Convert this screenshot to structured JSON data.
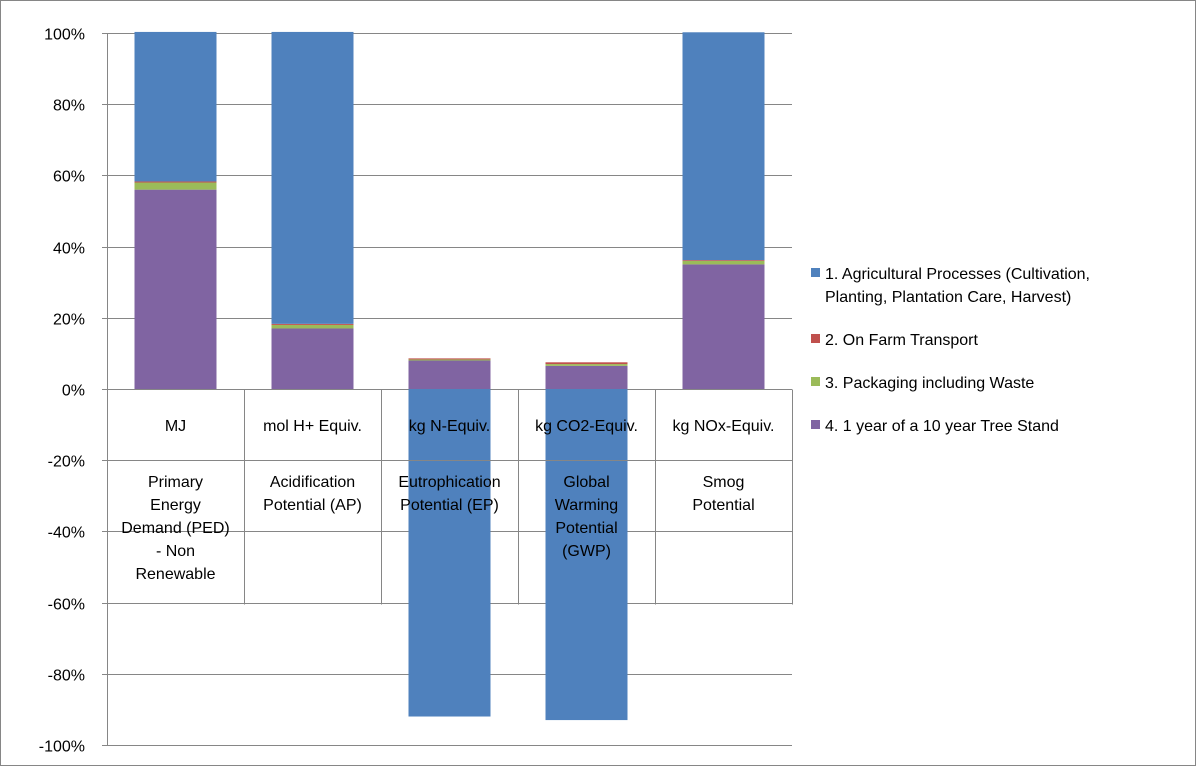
{
  "chart_data": {
    "type": "bar",
    "stacked": true,
    "categories": [
      {
        "unit": "MJ",
        "name_lines": [
          "Primary",
          "Energy",
          "Demand (PED)",
          "- Non",
          "Renewable"
        ]
      },
      {
        "unit": "mol H+ Equiv.",
        "name_lines": [
          "Acidification",
          "Potential (AP)"
        ]
      },
      {
        "unit": "kg N-Equiv.",
        "name_lines": [
          "Eutrophication",
          "Potential (EP)"
        ]
      },
      {
        "unit": "kg CO2-Equiv.",
        "name_lines": [
          "Global",
          "Warming",
          "Potential",
          "(GWP)"
        ]
      },
      {
        "unit": "kg NOx-Equiv.",
        "name_lines": [
          "Smog",
          "Potential"
        ]
      }
    ],
    "series": [
      {
        "name": "1. Agricultural Processes (Cultivation, Planting, Plantation Care, Harvest)",
        "legend_lines": [
          "1. Agricultural Processes (Cultivation,",
          "Planting, Plantation Care, Harvest)"
        ],
        "color": "#4f81bd",
        "values": [
          42,
          82,
          -92,
          -93,
          64
        ]
      },
      {
        "name": "2. On Farm Transport",
        "legend_lines": [
          "2. On Farm Transport"
        ],
        "color": "#c0504d",
        "values": [
          0.3,
          0.3,
          0.3,
          0.5,
          0.2
        ]
      },
      {
        "name": "3. Packaging including Waste",
        "legend_lines": [
          "3. Packaging including Waste"
        ],
        "color": "#9bbb59",
        "values": [
          2,
          1,
          0.3,
          0.5,
          1
        ]
      },
      {
        "name": "4. 1 year of a 10 year Tree Stand",
        "legend_lines": [
          "4. 1 year of a 10 year Tree Stand"
        ],
        "color": "#8064a2",
        "values": [
          56,
          17,
          8,
          6.5,
          35
        ]
      }
    ],
    "ylim": [
      -100,
      100
    ],
    "yticks": [
      -100,
      -80,
      -60,
      -40,
      -20,
      0,
      20,
      40,
      60,
      80,
      100
    ],
    "ytick_labels": [
      "-100%",
      "-80%",
      "-60%",
      "-40%",
      "-20%",
      "0%",
      "20%",
      "40%",
      "60%",
      "80%",
      "100%"
    ],
    "grid": true,
    "legend_position": "right",
    "title": "",
    "xlabel": "",
    "ylabel": ""
  }
}
